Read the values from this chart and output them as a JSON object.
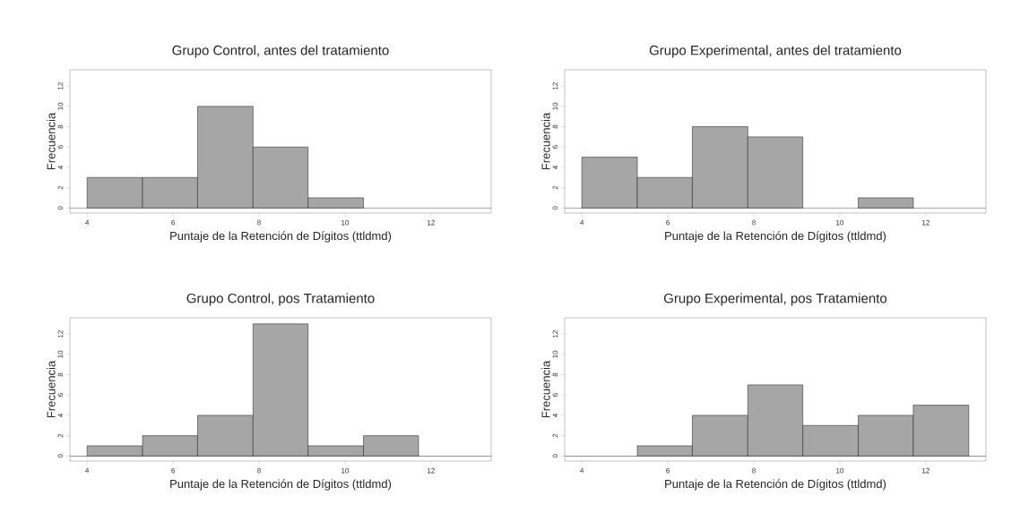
{
  "chart_data": [
    {
      "type": "histogram",
      "title": "Grupo Control, antes del tratamiento",
      "xlabel": "Puntaje de la Retención  de Dígitos (ttldmd)",
      "ylabel": "Frecuencia",
      "bins": [
        4,
        5.29,
        6.57,
        7.86,
        9.14,
        10.43,
        11.71,
        13
      ],
      "values": [
        3,
        3,
        10,
        6,
        1,
        0,
        0
      ],
      "color": "#a6a6a6",
      "xlim": [
        3.6,
        13.4
      ],
      "ylim": [
        -0.5,
        13.6
      ],
      "xticks": [
        4,
        6,
        8,
        10,
        12
      ],
      "yticks": [
        0,
        2,
        4,
        6,
        8,
        10,
        12
      ],
      "ref_lines": [
        {
          "axis": "y",
          "value": 0,
          "color": "#555555"
        }
      ]
    },
    {
      "type": "histogram",
      "title": "Grupo Experimental, antes del tratamiento",
      "xlabel": "Puntaje de la Retención  de Dígitos (ttldmd)",
      "ylabel": "Frecuencia",
      "bins": [
        4,
        5.29,
        6.57,
        7.86,
        9.14,
        10.43,
        11.71,
        13
      ],
      "values": [
        5,
        3,
        8,
        7,
        0,
        1,
        0
      ],
      "color": "#a6a6a6",
      "xlim": [
        3.6,
        13.4
      ],
      "ylim": [
        -0.5,
        13.6
      ],
      "xticks": [
        4,
        6,
        8,
        10,
        12
      ],
      "yticks": [
        0,
        2,
        4,
        6,
        8,
        10,
        12
      ],
      "ref_lines": [
        {
          "axis": "y",
          "value": 0,
          "color": "#555555"
        }
      ]
    },
    {
      "type": "histogram",
      "title": "Grupo Control, pos Tratamiento",
      "xlabel": "Puntaje de la Retención  de Dígitos (ttldmd)",
      "ylabel": "Frecuencia",
      "bins": [
        4,
        5.29,
        6.57,
        7.86,
        9.14,
        10.43,
        11.71,
        13
      ],
      "values": [
        1,
        2,
        4,
        13,
        1,
        2,
        0
      ],
      "color": "#a6a6a6",
      "xlim": [
        3.6,
        13.4
      ],
      "ylim": [
        -0.5,
        13.6
      ],
      "xticks": [
        4,
        6,
        8,
        10,
        12
      ],
      "yticks": [
        0,
        2,
        4,
        6,
        8,
        10,
        12
      ],
      "ref_lines": [
        {
          "axis": "y",
          "value": 0,
          "color": "#555555"
        }
      ]
    },
    {
      "type": "histogram",
      "title": "Grupo Experimental, pos Tratamiento",
      "xlabel": "Puntaje de la Retención  de Dígitos (ttldmd)",
      "ylabel": "Frecuencia",
      "bins": [
        4,
        5.29,
        6.57,
        7.86,
        9.14,
        10.43,
        11.71,
        13
      ],
      "values": [
        0,
        1,
        4,
        7,
        3,
        4,
        5
      ],
      "color": "#a6a6a6",
      "xlim": [
        3.6,
        13.4
      ],
      "ylim": [
        -0.5,
        13.6
      ],
      "xticks": [
        4,
        6,
        8,
        10,
        12
      ],
      "yticks": [
        0,
        2,
        4,
        6,
        8,
        10,
        12
      ],
      "ref_lines": [
        {
          "axis": "y",
          "value": 0,
          "color": "#555555"
        }
      ]
    }
  ]
}
